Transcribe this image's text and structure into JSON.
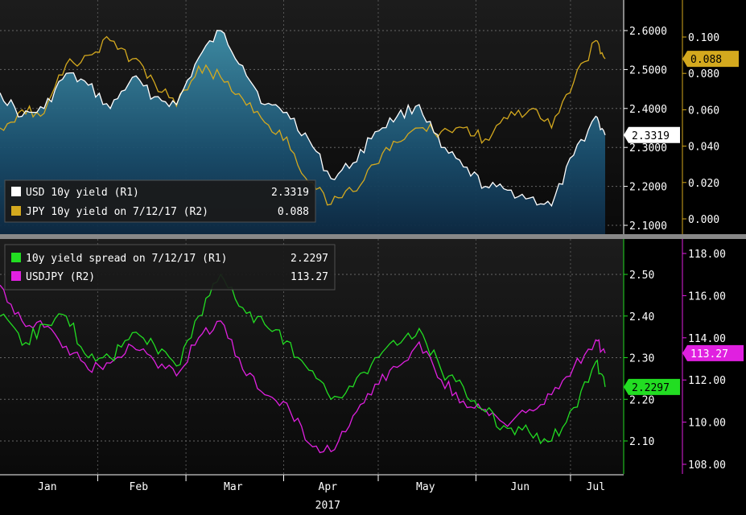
{
  "chart_data": [
    {
      "type": "area",
      "panel": "top",
      "x": [
        "2017-01-01",
        "2017-01-08",
        "2017-01-15",
        "2017-01-22",
        "2017-01-29",
        "2017-02-05",
        "2017-02-12",
        "2017-02-19",
        "2017-02-26",
        "2017-03-05",
        "2017-03-12",
        "2017-03-19",
        "2017-03-26",
        "2017-04-02",
        "2017-04-09",
        "2017-04-16",
        "2017-04-23",
        "2017-04-30",
        "2017-05-07",
        "2017-05-14",
        "2017-05-21",
        "2017-05-28",
        "2017-06-04",
        "2017-06-11",
        "2017-06-18",
        "2017-06-25",
        "2017-07-02",
        "2017-07-09",
        "2017-07-12"
      ],
      "series": [
        {
          "name": "USD 10y yield (R1)",
          "axis": "R1",
          "color": "#ffffff",
          "fill": "#1f6f8a",
          "values": [
            2.44,
            2.38,
            2.4,
            2.49,
            2.46,
            2.4,
            2.48,
            2.43,
            2.41,
            2.53,
            2.6,
            2.51,
            2.41,
            2.39,
            2.32,
            2.22,
            2.26,
            2.34,
            2.38,
            2.41,
            2.3,
            2.25,
            2.2,
            2.19,
            2.17,
            2.15,
            2.28,
            2.38,
            2.3319
          ]
        },
        {
          "name": "JPY 10y yield on 7/12/17 (R2)",
          "axis": "R2",
          "color": "#d4a91e",
          "values": [
            0.05,
            0.06,
            0.058,
            0.085,
            0.09,
            0.098,
            0.088,
            0.075,
            0.062,
            0.084,
            0.078,
            0.066,
            0.053,
            0.045,
            0.02,
            0.008,
            0.015,
            0.03,
            0.042,
            0.05,
            0.048,
            0.05,
            0.044,
            0.055,
            0.06,
            0.05,
            0.075,
            0.098,
            0.088
          ]
        }
      ],
      "axes": {
        "R1": {
          "min": 2.1,
          "max": 2.6,
          "ticks": [
            "2.6000",
            "2.5000",
            "2.4000",
            "2.3000",
            "2.2000",
            "2.1000"
          ]
        },
        "R2": {
          "min": 0.0,
          "max": 0.1,
          "ticks": [
            "0.100",
            "0.080",
            "0.060",
            "0.040",
            "0.020",
            "0.000"
          ]
        }
      },
      "last_value_labels": {
        "R1": "2.3319",
        "R2": "0.088"
      },
      "legend": [
        {
          "label": "USD 10y yield (R1)",
          "value": "2.3319",
          "color": "#ffffff"
        },
        {
          "label": "JPY 10y yield on 7/12/17 (R2)",
          "value": "0.088",
          "color": "#d4a91e"
        }
      ],
      "legend_placement": "bottom-left",
      "grid": true
    },
    {
      "type": "line",
      "panel": "bottom",
      "x": [
        "2017-01-01",
        "2017-01-08",
        "2017-01-15",
        "2017-01-22",
        "2017-01-29",
        "2017-02-05",
        "2017-02-12",
        "2017-02-19",
        "2017-02-26",
        "2017-03-05",
        "2017-03-12",
        "2017-03-19",
        "2017-03-26",
        "2017-04-02",
        "2017-04-09",
        "2017-04-16",
        "2017-04-23",
        "2017-04-30",
        "2017-05-07",
        "2017-05-14",
        "2017-05-21",
        "2017-05-28",
        "2017-06-04",
        "2017-06-11",
        "2017-06-18",
        "2017-06-25",
        "2017-07-02",
        "2017-07-09",
        "2017-07-12"
      ],
      "series": [
        {
          "name": "10y yield spread on 7/12/17 (R1)",
          "axis": "R1",
          "color": "#22dd22",
          "values": [
            2.4,
            2.33,
            2.38,
            2.4,
            2.3,
            2.3,
            2.36,
            2.33,
            2.28,
            2.4,
            2.5,
            2.42,
            2.38,
            2.34,
            2.27,
            2.2,
            2.23,
            2.3,
            2.33,
            2.37,
            2.27,
            2.23,
            2.17,
            2.13,
            2.12,
            2.1,
            2.18,
            2.29,
            2.2297
          ]
        },
        {
          "name": "USDJPY (R2)",
          "axis": "R2",
          "color": "#e020e0",
          "values": [
            116.5,
            114.8,
            114.5,
            113.6,
            112.5,
            112.8,
            113.6,
            112.9,
            112.2,
            114.0,
            114.8,
            112.5,
            111.3,
            110.9,
            109.0,
            108.6,
            110.3,
            111.8,
            112.6,
            113.8,
            112.0,
            111.0,
            110.6,
            109.8,
            110.6,
            111.3,
            112.6,
            113.9,
            113.27
          ]
        }
      ],
      "axes": {
        "R1": {
          "min": 2.05,
          "max": 2.55,
          "ticks": [
            "2.50",
            "2.40",
            "2.30",
            "2.20",
            "2.10"
          ]
        },
        "R2": {
          "min": 107.8,
          "max": 118.4,
          "ticks": [
            "118.00",
            "116.00",
            "114.00",
            "112.00",
            "110.00",
            "108.00"
          ]
        }
      },
      "last_value_labels": {
        "R1": "2.2297",
        "R2": "113.27"
      },
      "legend": [
        {
          "label": "10y yield spread on 7/12/17 (R1)",
          "value": "2.2297",
          "color": "#22dd22"
        },
        {
          "label": "USDJPY (R2)",
          "value": "113.27",
          "color": "#e020e0"
        }
      ],
      "legend_placement": "top-left",
      "grid": true
    }
  ],
  "x_axis": {
    "min": "2017-01-01",
    "max": "2017-07-12",
    "months": [
      {
        "label": "Jan",
        "date": "2017-01-16"
      },
      {
        "label": "Feb",
        "date": "2017-02-14"
      },
      {
        "label": "Mar",
        "date": "2017-03-16"
      },
      {
        "label": "Apr",
        "date": "2017-04-15"
      },
      {
        "label": "May",
        "date": "2017-05-16"
      },
      {
        "label": "Jun",
        "date": "2017-06-15"
      },
      {
        "label": "Jul",
        "date": "2017-07-09"
      }
    ],
    "year_label": "2017"
  }
}
